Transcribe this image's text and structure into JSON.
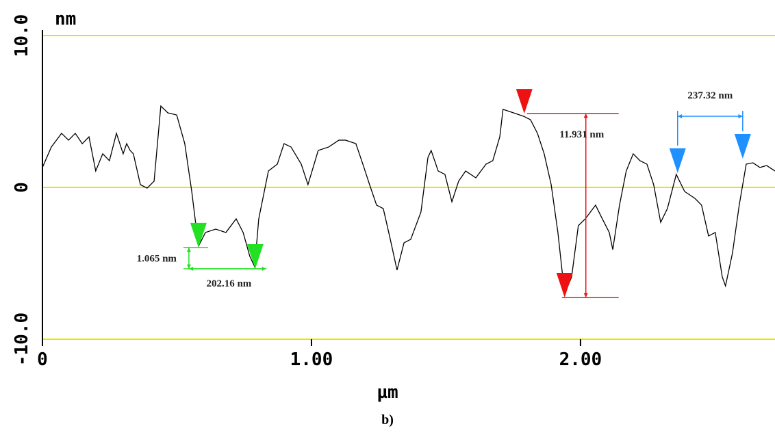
{
  "chart_data": {
    "type": "line",
    "y_label": "nm",
    "x_label": "µm",
    "caption": "b)",
    "xlim": [
      0,
      2.723
    ],
    "ylim": [
      -10,
      10
    ],
    "xticks": [
      0,
      {
        "value": 1,
        "label": "1.00"
      },
      {
        "value": 2,
        "label": "2.00"
      }
    ],
    "yticks": [
      {
        "value": 10,
        "label": "10.0"
      },
      0,
      {
        "value": -10,
        "label": "-10.0"
      }
    ],
    "grid": true,
    "grid_color": "#e6e600",
    "series": [
      {
        "color": "#000000",
        "x": [
          0,
          0.033,
          0.071,
          0.097,
          0.122,
          0.148,
          0.173,
          0.198,
          0.224,
          0.249,
          0.275,
          0.3,
          0.313,
          0.326,
          0.338,
          0.364,
          0.389,
          0.415,
          0.44,
          0.466,
          0.499,
          0.529,
          0.555,
          0.58,
          0.606,
          0.644,
          0.682,
          0.72,
          0.746,
          0.771,
          0.789,
          0.804,
          0.84,
          0.873,
          0.898,
          0.924,
          0.962,
          0.987,
          1.025,
          1.064,
          1.102,
          1.127,
          1.165,
          1.191,
          1.216,
          1.242,
          1.267,
          1.293,
          1.318,
          1.344,
          1.369,
          1.407,
          1.433,
          1.445,
          1.471,
          1.496,
          1.522,
          1.547,
          1.573,
          1.611,
          1.649,
          1.674,
          1.7,
          1.712,
          1.751,
          1.789,
          1.814,
          1.84,
          1.865,
          1.891,
          1.916,
          1.941,
          1.967,
          1.992,
          2.018,
          2.056,
          2.081,
          2.107,
          2.12,
          2.145,
          2.17,
          2.196,
          2.221,
          2.247,
          2.272,
          2.298,
          2.323,
          2.356,
          2.387,
          2.425,
          2.45,
          2.476,
          2.501,
          2.527,
          2.539,
          2.565,
          2.59,
          2.616,
          2.641,
          2.667,
          2.692,
          2.723
        ],
        "values": [
          1.31,
          2.66,
          3.56,
          3.11,
          3.56,
          2.88,
          3.33,
          1.08,
          2.21,
          1.76,
          3.56,
          2.21,
          2.88,
          2.43,
          2.21,
          0.18,
          -0.05,
          0.41,
          5.36,
          4.91,
          4.77,
          2.88,
          -0.27,
          -3.87,
          -2.97,
          -2.75,
          -2.97,
          -2.07,
          -2.97,
          -4.55,
          -5.23,
          -2.07,
          1.08,
          1.53,
          2.88,
          2.66,
          1.53,
          0.18,
          2.43,
          2.66,
          3.11,
          3.11,
          2.88,
          1.53,
          0.18,
          -1.17,
          -1.4,
          -3.42,
          -5.45,
          -3.65,
          -3.42,
          -1.62,
          1.98,
          2.43,
          1.08,
          0.86,
          -0.95,
          0.41,
          1.08,
          0.63,
          1.53,
          1.76,
          3.33,
          5.14,
          4.91,
          4.68,
          4.46,
          3.56,
          2.21,
          0.18,
          -2.97,
          -7.03,
          -5.9,
          -2.52,
          -2.07,
          -1.17,
          -2.07,
          -2.97,
          -4.1,
          -1.17,
          1.08,
          2.21,
          1.76,
          1.53,
          0.18,
          -2.3,
          -1.4,
          0.86,
          -0.27,
          -0.72,
          -1.17,
          -3.2,
          -2.97,
          -5.9,
          -6.49,
          -4.32,
          -1.17,
          1.53,
          1.62,
          1.31,
          1.44,
          1.08
        ]
      }
    ],
    "cursors": [
      {
        "color": "#22e022",
        "x": [
          0.58,
          0.791
        ],
        "y": [
          -3.96,
          -5.36
        ],
        "labels": [
          "1.065 nm",
          "202.16 nm"
        ]
      },
      {
        "color": "#ee1111",
        "x": [
          1.791,
          1.941
        ],
        "y": [
          4.86,
          -7.25
        ],
        "labels": [
          "11.931 nm"
        ]
      },
      {
        "color": "#1e90ff",
        "x": [
          2.361,
          2.603
        ],
        "y": [
          0.95,
          1.89
        ],
        "labels": [
          "237.32 nm"
        ]
      }
    ]
  }
}
